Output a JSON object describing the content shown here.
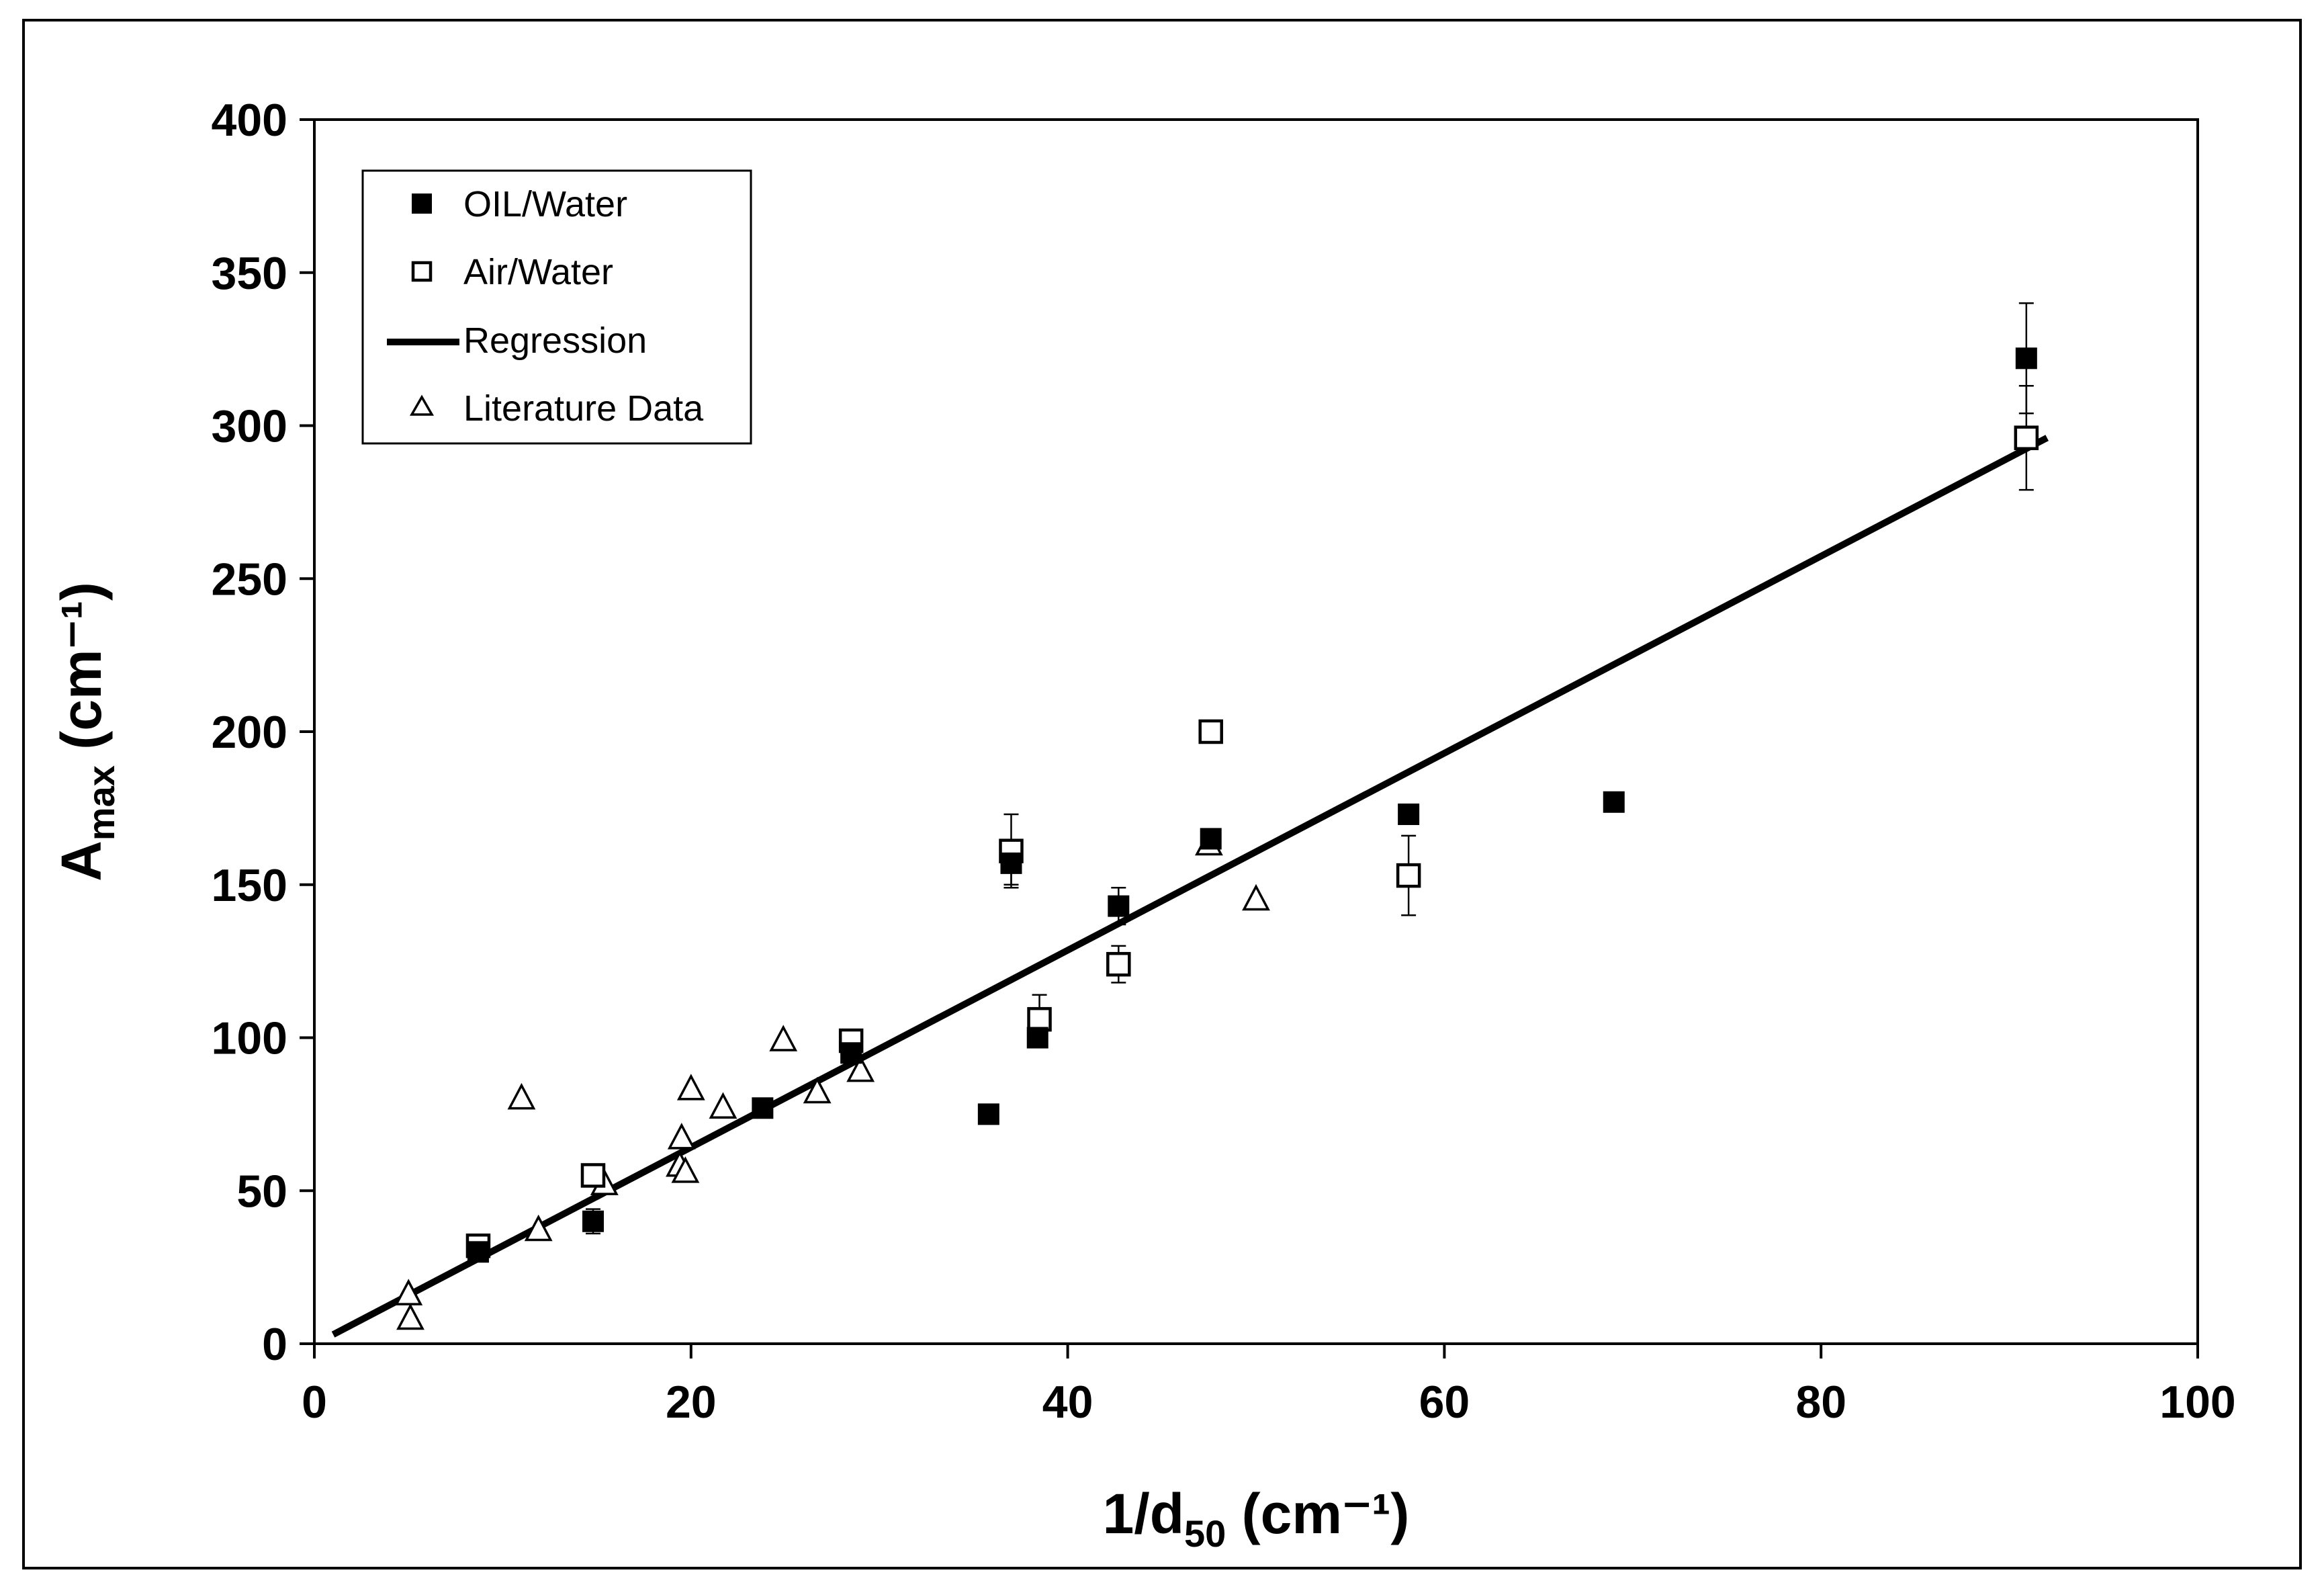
{
  "chart_data": {
    "type": "scatter",
    "title": "",
    "xlabel": {
      "main": "1/d",
      "sub": "50",
      "unit": " (cm⁻¹)"
    },
    "ylabel": {
      "main": "A",
      "sub": "max",
      "unit": " (cm⁻¹)"
    },
    "xlim": [
      0,
      100
    ],
    "ylim": [
      0,
      400
    ],
    "x_ticks": [
      0,
      20,
      40,
      60,
      80,
      100
    ],
    "y_ticks": [
      0,
      50,
      100,
      150,
      200,
      250,
      300,
      350,
      400
    ],
    "grid": false,
    "legend_position": "top-left",
    "legend": [
      {
        "label": "OIL/Water",
        "marker": "filled-square"
      },
      {
        "label": "Air/Water",
        "marker": "open-square"
      },
      {
        "label": "Regression",
        "marker": "line"
      },
      {
        "label": "Literature Data",
        "marker": "open-triangle"
      }
    ],
    "series": [
      {
        "name": "OIL/Water",
        "marker": "filled-square",
        "points": [
          {
            "x": 8.7,
            "y": 30
          },
          {
            "x": 14.8,
            "y": 40,
            "err": 4
          },
          {
            "x": 23.8,
            "y": 77
          },
          {
            "x": 28.5,
            "y": 95
          },
          {
            "x": 35.8,
            "y": 75
          },
          {
            "x": 37.0,
            "y": 157,
            "err": 7
          },
          {
            "x": 38.4,
            "y": 100
          },
          {
            "x": 42.7,
            "y": 143,
            "err": 6
          },
          {
            "x": 47.6,
            "y": 165
          },
          {
            "x": 58.1,
            "y": 173
          },
          {
            "x": 69.0,
            "y": 177
          },
          {
            "x": 90.9,
            "y": 322,
            "err": 18
          }
        ]
      },
      {
        "name": "Air/Water",
        "marker": "open-square",
        "points": [
          {
            "x": 8.7,
            "y": 32
          },
          {
            "x": 14.8,
            "y": 55
          },
          {
            "x": 28.5,
            "y": 99
          },
          {
            "x": 37.0,
            "y": 161,
            "err": 12
          },
          {
            "x": 38.5,
            "y": 106,
            "err": 8
          },
          {
            "x": 42.7,
            "y": 124,
            "err": 6
          },
          {
            "x": 47.6,
            "y": 200
          },
          {
            "x": 58.1,
            "y": 153,
            "err": 13
          },
          {
            "x": 90.9,
            "y": 296,
            "err": 17
          }
        ]
      },
      {
        "name": "Literature Data",
        "marker": "open-triangle",
        "points": [
          {
            "x": 5.0,
            "y": 16
          },
          {
            "x": 5.1,
            "y": 8
          },
          {
            "x": 11.0,
            "y": 80
          },
          {
            "x": 11.9,
            "y": 37
          },
          {
            "x": 15.4,
            "y": 52
          },
          {
            "x": 19.4,
            "y": 58
          },
          {
            "x": 19.5,
            "y": 67
          },
          {
            "x": 19.7,
            "y": 56
          },
          {
            "x": 20.0,
            "y": 83
          },
          {
            "x": 21.7,
            "y": 77
          },
          {
            "x": 24.9,
            "y": 99
          },
          {
            "x": 26.7,
            "y": 82
          },
          {
            "x": 29.0,
            "y": 89
          },
          {
            "x": 47.5,
            "y": 163
          },
          {
            "x": 50.0,
            "y": 145
          }
        ]
      }
    ],
    "regression": {
      "name": "Regression",
      "x": [
        1.0,
        92.0
      ],
      "y": [
        3,
        296
      ]
    }
  }
}
